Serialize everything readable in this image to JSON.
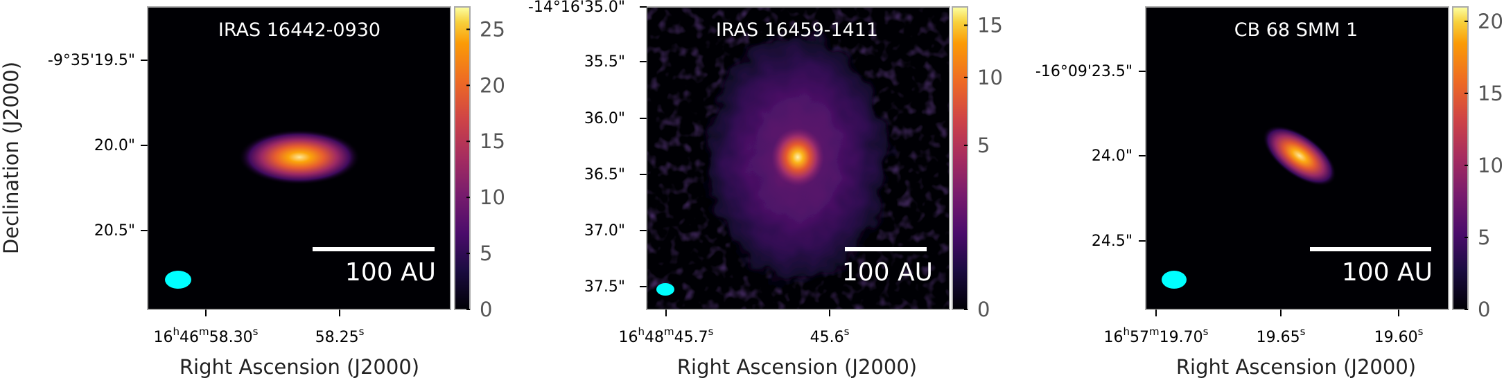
{
  "figure": {
    "ylabel": "Declination (J2000)",
    "panels": [
      {
        "name": "IRAS 16442-0930",
        "xlabel": "Right Ascension (J2000)",
        "x_ticks": [
          {
            "h": "16",
            "m": "46",
            "s": "58.30"
          },
          {
            "h": "",
            "m": "",
            "s": "58.25"
          }
        ],
        "y_ticks": [
          "-9°35'19.5\"",
          "20.0\"",
          "20.5\""
        ],
        "colorbar_ticks": [
          "0",
          "5",
          "10",
          "15",
          "20",
          "25"
        ],
        "colorbar_range": [
          0,
          27
        ],
        "scale_bar_label": "100 AU"
      },
      {
        "name": "IRAS 16459-1411",
        "xlabel": "Right Ascension (J2000)",
        "x_ticks": [
          {
            "h": "16",
            "m": "48",
            "s": "45.7"
          },
          {
            "h": "",
            "m": "",
            "s": "45.6"
          }
        ],
        "y_ticks": [
          "-14°16'35.0\"",
          "35.5\"",
          "36.0\"",
          "36.5\"",
          "37.0\"",
          "37.5\""
        ],
        "colorbar_ticks": [
          "0",
          "5",
          "10",
          "15"
        ],
        "colorbar_range": [
          0,
          17
        ],
        "colorbar_scale": "sqrt",
        "scale_bar_label": "100 AU"
      },
      {
        "name": "CB 68 SMM 1",
        "xlabel": "Right Ascension (J2000)",
        "x_ticks": [
          {
            "h": "16",
            "m": "57",
            "s": "19.70"
          },
          {
            "h": "",
            "m": "",
            "s": "19.65"
          },
          {
            "h": "",
            "m": "",
            "s": "19.60"
          }
        ],
        "y_ticks": [
          "-16°09'23.5\"",
          "24.0\"",
          "24.5\""
        ],
        "colorbar_ticks": [
          "0",
          "5",
          "10",
          "15",
          "20"
        ],
        "colorbar_range": [
          0,
          21
        ],
        "scale_bar_label": "100 AU"
      }
    ],
    "colormap": "inferno",
    "beam_color": "#00ffff",
    "frame_color": "#aaaaaa"
  }
}
